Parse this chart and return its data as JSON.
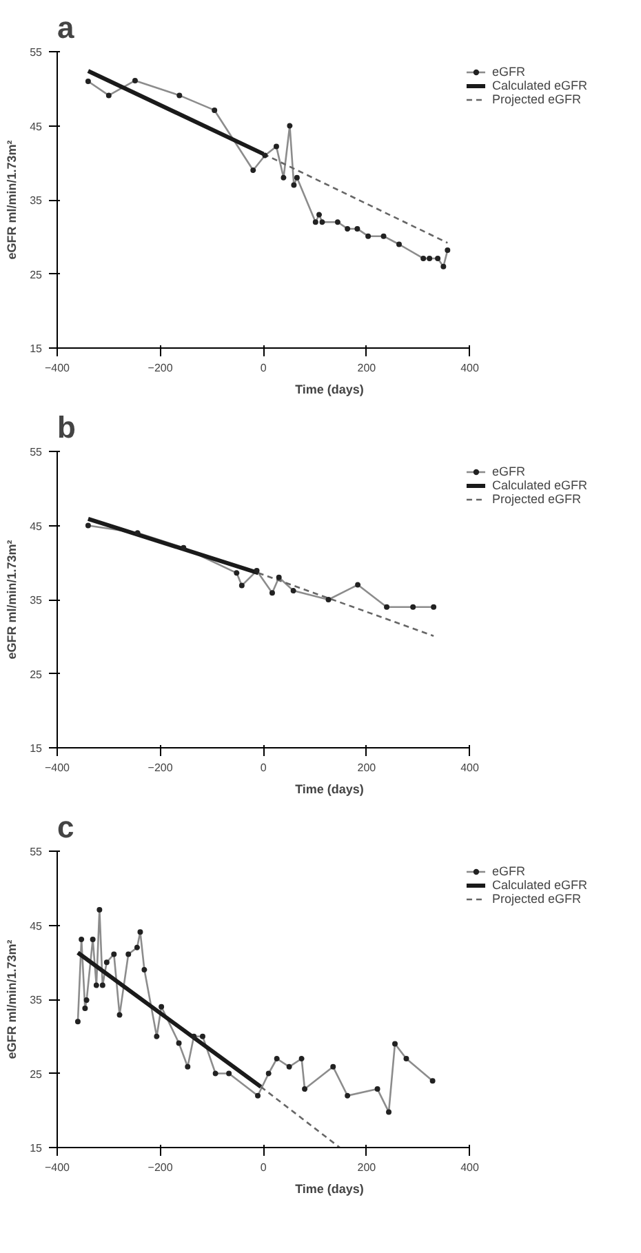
{
  "chart_data": [
    {
      "type": "line",
      "title": "a",
      "xlabel": "Time (days)",
      "ylabel": "eGFR ml/min/1.73m²",
      "xlim": [
        -400,
        400
      ],
      "xticks": [
        -400,
        -200,
        0,
        200,
        400
      ],
      "ylim": [
        15,
        55
      ],
      "yticks": [
        15,
        25,
        35,
        45,
        55
      ],
      "grid": false,
      "legend": "top right",
      "series": [
        {
          "name": "eGFR",
          "color": "#8c8c8c",
          "marker": "circle",
          "line_style": "solid",
          "x": [
            -340,
            -300,
            -249,
            -163,
            -95,
            -20,
            3,
            25,
            39,
            51,
            59,
            65,
            101,
            108,
            114,
            144,
            163,
            182,
            203,
            233,
            263,
            310,
            322,
            338,
            349,
            357
          ],
          "values": [
            51,
            49.1,
            51.1,
            49.1,
            47.1,
            39,
            41,
            42.2,
            38,
            45,
            37,
            38,
            32,
            33,
            32,
            32,
            31.1,
            31.1,
            30.1,
            30.1,
            29,
            27.1,
            27.1,
            27.1,
            26,
            28.2
          ]
        },
        {
          "name": "Calculated eGFR",
          "color": "#1a1a1a",
          "marker": "none",
          "line_style": "solid",
          "x": [
            -340,
            0
          ],
          "values": [
            52.4,
            41.2
          ]
        },
        {
          "name": "Projected eGFR",
          "color": "#666666",
          "marker": "none",
          "line_style": "dashed",
          "x": [
            0,
            357
          ],
          "values": [
            41.2,
            29.2
          ]
        }
      ]
    },
    {
      "type": "line",
      "title": "b",
      "xlabel": "Time (days)",
      "ylabel": "eGFR ml/min/1.73m²",
      "xlim": [
        -400,
        400
      ],
      "xticks": [
        -400,
        -200,
        0,
        200,
        400
      ],
      "ylim": [
        15,
        55
      ],
      "yticks": [
        15,
        25,
        35,
        45,
        55
      ],
      "grid": false,
      "legend": "top right",
      "series": [
        {
          "name": "eGFR",
          "color": "#8c8c8c",
          "marker": "circle",
          "line_style": "solid",
          "x": [
            -340,
            -244,
            -155,
            -52,
            -42,
            -13,
            17,
            30,
            58,
            126,
            183,
            239,
            290,
            330
          ],
          "values": [
            45,
            44,
            42,
            38.6,
            36.9,
            38.9,
            35.9,
            38,
            36.2,
            35,
            37,
            34,
            34,
            34
          ]
        },
        {
          "name": "Calculated eGFR",
          "color": "#1a1a1a",
          "marker": "none",
          "line_style": "solid",
          "x": [
            -340,
            -10
          ],
          "values": [
            45.9,
            38.6
          ]
        },
        {
          "name": "Projected eGFR",
          "color": "#666666",
          "marker": "none",
          "line_style": "dashed",
          "x": [
            -10,
            330
          ],
          "values": [
            38.6,
            30.1
          ]
        }
      ]
    },
    {
      "type": "line",
      "title": "c",
      "xlabel": "Time (days)",
      "ylabel": "eGFR ml/min/1.73m²",
      "xlim": [
        -400,
        400
      ],
      "xticks": [
        -400,
        -200,
        0,
        200,
        400
      ],
      "ylim": [
        15,
        55
      ],
      "yticks": [
        15,
        25,
        35,
        45,
        55
      ],
      "grid": false,
      "legend": "top right",
      "series": [
        {
          "name": "eGFR",
          "color": "#8c8c8c",
          "marker": "circle",
          "line_style": "solid",
          "x": [
            -360,
            -353,
            -346,
            -343,
            -331,
            -324,
            -318,
            -312,
            -304,
            -290,
            -279,
            -262,
            -245,
            -239,
            -231,
            -207,
            -198,
            -164,
            -147,
            -135,
            -118,
            -93,
            -67,
            -11,
            10,
            26,
            50,
            74,
            80,
            135,
            163,
            221,
            243,
            255,
            277,
            328
          ],
          "values": [
            32,
            43.1,
            33.8,
            34.9,
            43.1,
            36.9,
            47.1,
            36.9,
            40,
            41.1,
            32.9,
            41.1,
            42,
            44.1,
            39,
            30,
            34,
            29.1,
            25.9,
            30,
            30,
            25,
            25,
            22,
            25,
            27,
            25.9,
            27,
            22.9,
            25.9,
            22,
            22.9,
            19.8,
            29,
            27,
            24
          ]
        },
        {
          "name": "Calculated eGFR",
          "color": "#1a1a1a",
          "marker": "none",
          "line_style": "solid",
          "x": [
            -360,
            -5
          ],
          "values": [
            41.3,
            23.2
          ]
        },
        {
          "name": "Projected eGFR",
          "color": "#666666",
          "marker": "none",
          "line_style": "dashed",
          "x": [
            -5,
            148
          ],
          "values": [
            23.2,
            15
          ]
        }
      ]
    }
  ]
}
